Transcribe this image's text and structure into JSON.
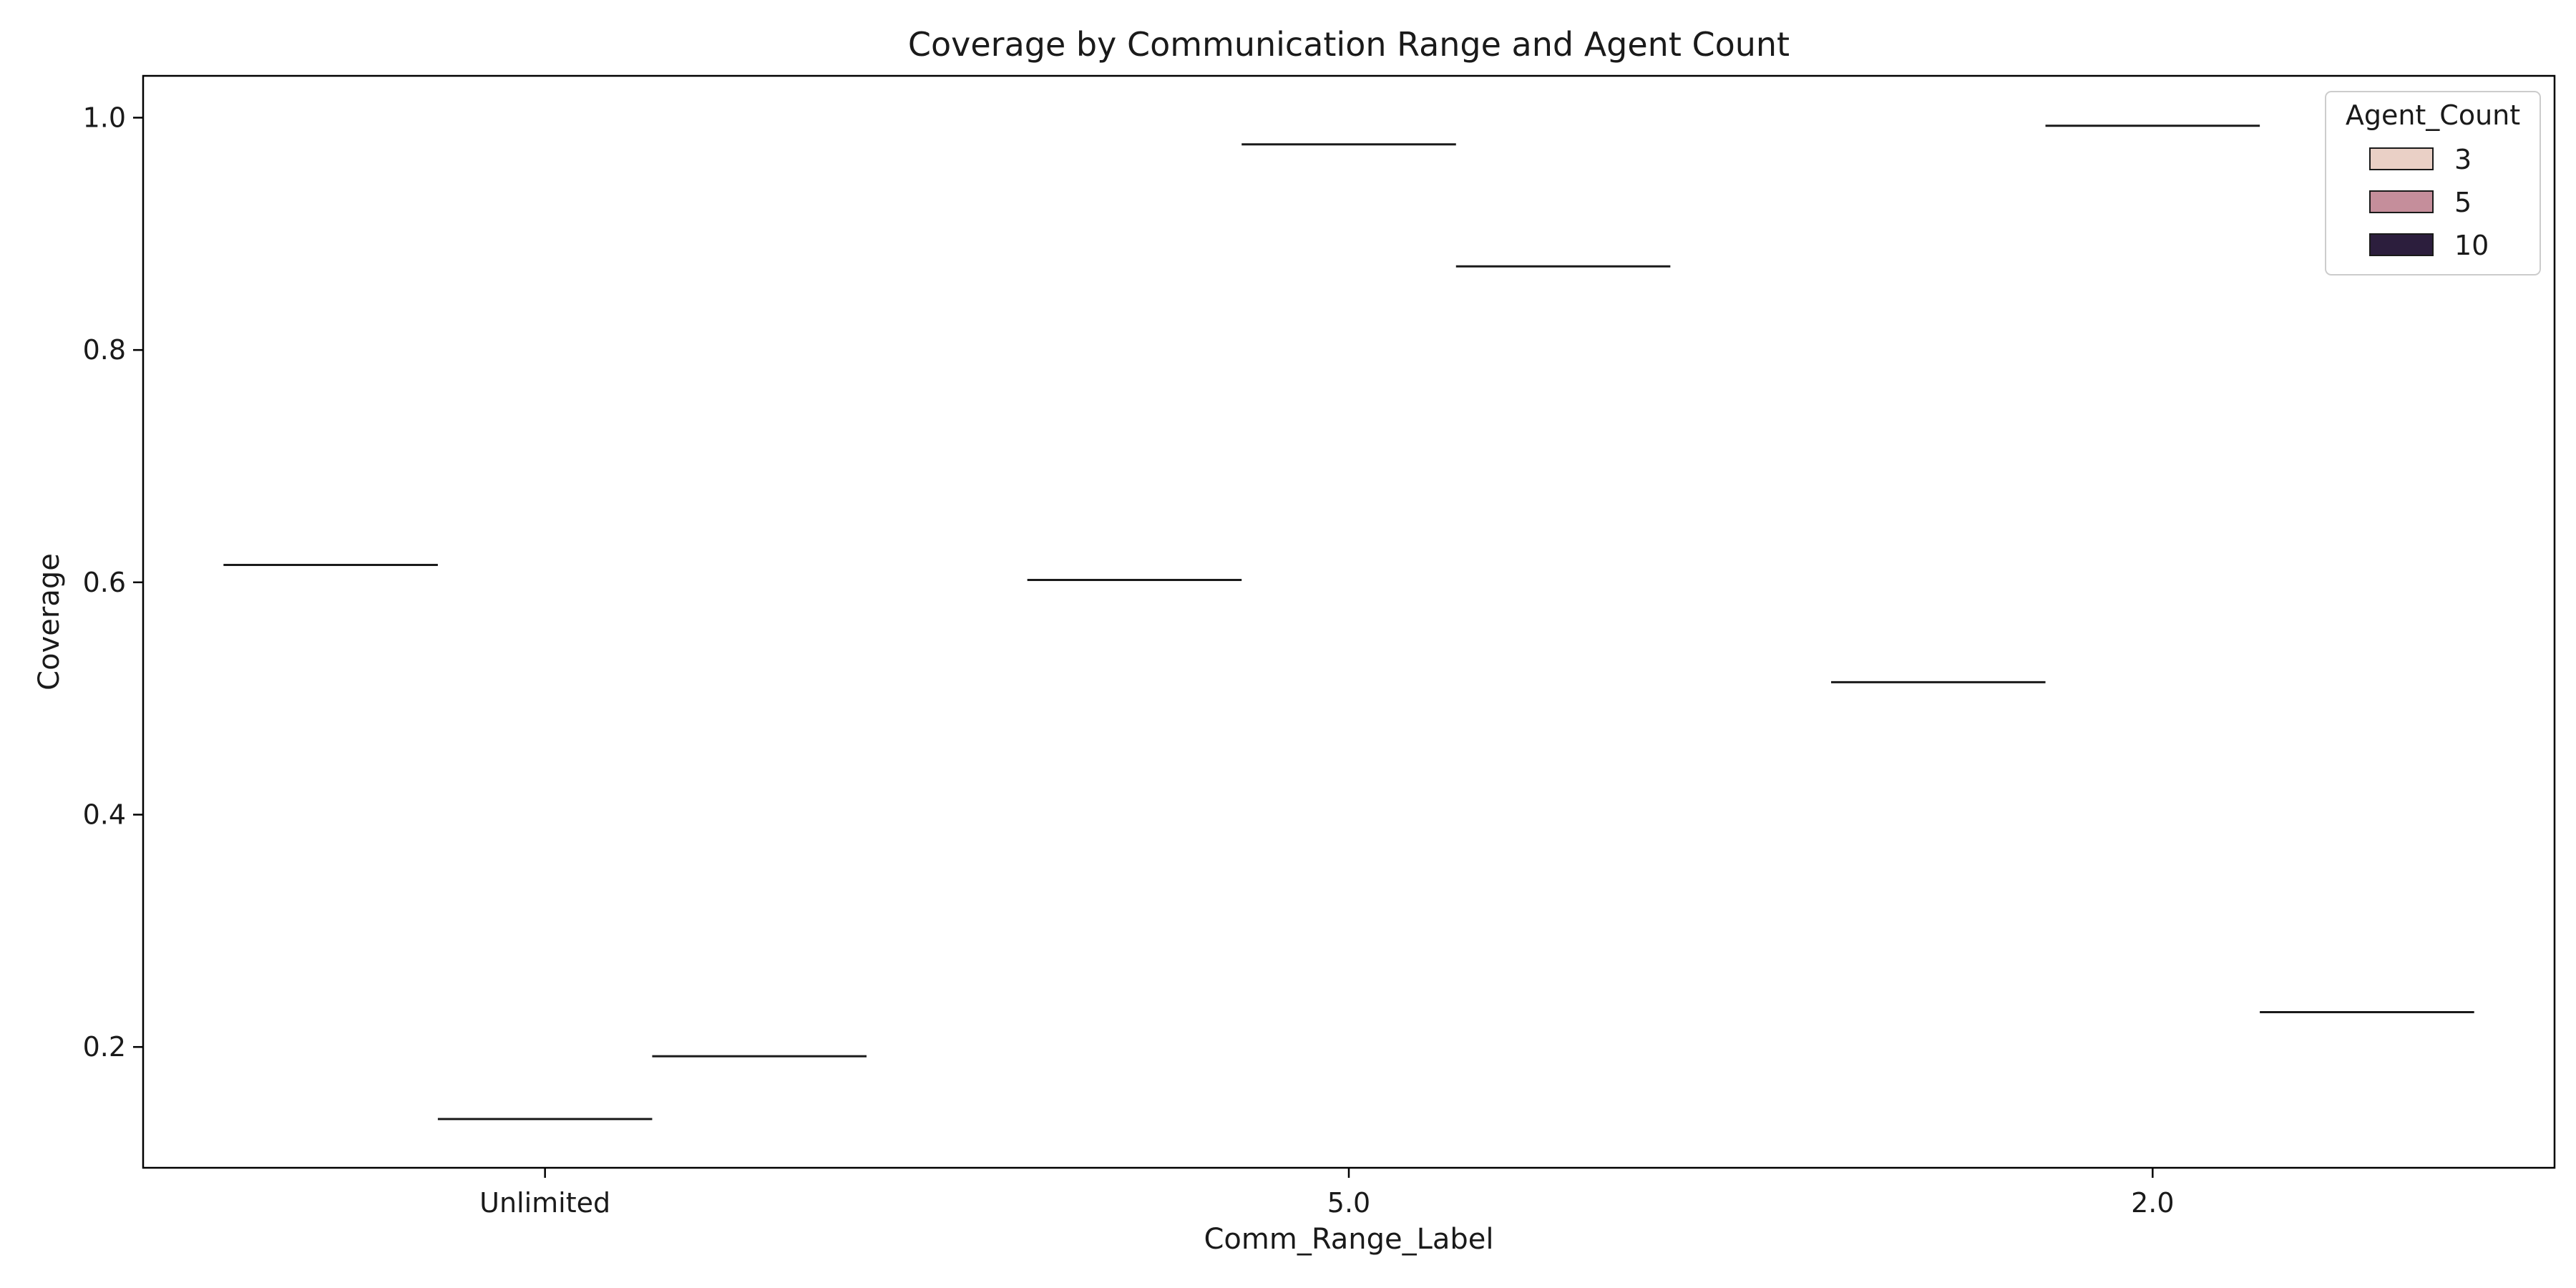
{
  "chart_data": {
    "type": "box",
    "title": "Coverage by Communication Range and Agent Count",
    "xlabel": "Comm_Range_Label",
    "ylabel": "Coverage",
    "categories": [
      "Unlimited",
      "5.0",
      "2.0"
    ],
    "ylim": [
      0.096,
      1.036
    ],
    "yticks": [
      0.2,
      0.4,
      0.6,
      0.8,
      1.0
    ],
    "ytick_labels": [
      "0.2",
      "0.4",
      "0.6",
      "0.8",
      "1.0"
    ],
    "grid": false,
    "legend": {
      "title": "Agent_Count",
      "placement": "top-right",
      "entries": [
        {
          "label": "3",
          "color": "#ead0c6"
        },
        {
          "label": "5",
          "color": "#c58e9b"
        },
        {
          "label": "10",
          "color": "#2c1e3d"
        }
      ]
    },
    "series": [
      {
        "name": "3",
        "values": [
          0.615,
          0.602,
          0.514
        ]
      },
      {
        "name": "5",
        "values": [
          0.138,
          0.977,
          0.993
        ]
      },
      {
        "name": "10",
        "values": [
          0.192,
          0.872,
          0.23
        ]
      }
    ]
  }
}
